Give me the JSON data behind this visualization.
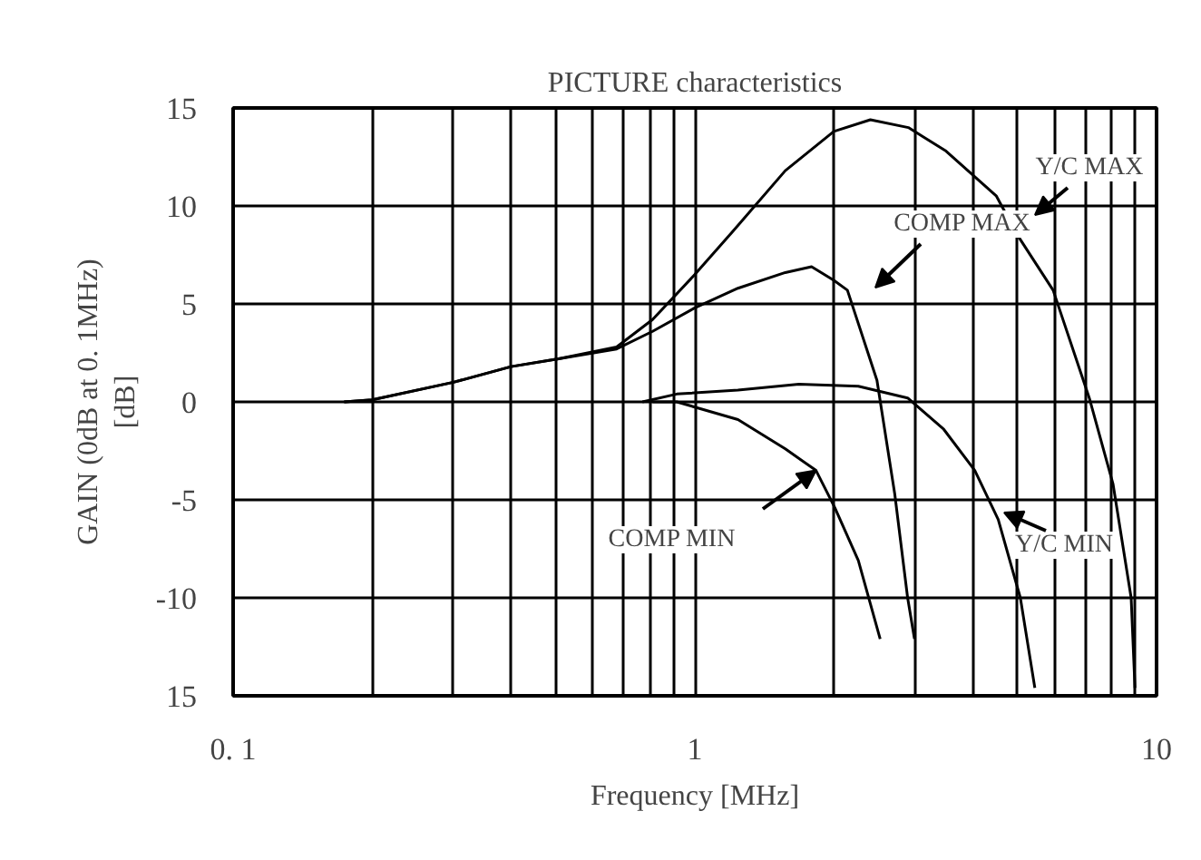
{
  "chart_data": {
    "type": "line",
    "title": "PICTURE characteristics",
    "xlabel": "Frequency [MHz]",
    "ylabel": "GAIN (0dB at 0. 1MHz)\n[dB]",
    "log": "x",
    "grid": true,
    "marker": "none",
    "line_style": "solid",
    "xlim": [
      0.1,
      10
    ],
    "ylim": [
      -15,
      15
    ],
    "xticks": [
      {
        "value": 0.1,
        "label": "0. 1"
      },
      {
        "value": 0.2,
        "label": null
      },
      {
        "value": 0.3,
        "label": null
      },
      {
        "value": 0.4,
        "label": null
      },
      {
        "value": 0.5,
        "label": null
      },
      {
        "value": 0.6,
        "label": null
      },
      {
        "value": 0.7,
        "label": null
      },
      {
        "value": 0.8,
        "label": null
      },
      {
        "value": 0.9,
        "label": null
      },
      1,
      {
        "value": 2,
        "label": null
      },
      {
        "value": 3,
        "label": null
      },
      {
        "value": 4,
        "label": null
      },
      {
        "value": 5,
        "label": null
      },
      {
        "value": 6,
        "label": null
      },
      {
        "value": 7,
        "label": null
      },
      {
        "value": 8,
        "label": null
      },
      {
        "value": 9,
        "label": null
      },
      10
    ],
    "yticks": [
      {
        "value": -15,
        "label": "15"
      },
      -10,
      -5,
      0,
      5,
      10,
      15
    ],
    "series": [
      {
        "color": "#000000",
        "x": [
          0.174,
          0.2,
          0.3,
          0.4,
          0.507,
          0.677,
          0.81,
          1.0,
          1.24,
          1.57,
          2.0,
          2.4,
          2.9,
          3.5,
          4.5,
          5.0,
          5.97,
          7.15,
          8.05,
          8.81,
          8.98
        ],
        "values": [
          0,
          0.1,
          1.0,
          1.8,
          2.2,
          2.8,
          4.2,
          6.5,
          9.0,
          11.8,
          13.8,
          14.4,
          14.0,
          12.8,
          10.5,
          8.5,
          5.7,
          0.2,
          -4.2,
          -10,
          -14.6
        ]
      },
      {
        "color": "#000000",
        "x": [
          0.174,
          0.2,
          0.3,
          0.4,
          0.507,
          0.677,
          0.81,
          1.0,
          1.24,
          1.57,
          1.79,
          2.0,
          2.14,
          2.48,
          2.71,
          2.89,
          2.99
        ],
        "values": [
          0,
          0.1,
          1.0,
          1.8,
          2.2,
          2.7,
          3.6,
          4.8,
          5.8,
          6.6,
          6.9,
          6.2,
          5.7,
          1.1,
          -4.7,
          -10,
          -12.1
        ]
      },
      {
        "color": "#000000",
        "x": [
          0.81,
          0.914,
          1.24,
          1.57,
          1.83,
          2.01,
          2.26,
          2.52
        ],
        "values": [
          0,
          0,
          -0.9,
          -2.4,
          -3.5,
          -5.4,
          -8.1,
          -12.1
        ]
      },
      {
        "color": "#000000",
        "x": [
          0.77,
          0.914,
          1.24,
          1.68,
          2.26,
          2.89,
          3.46,
          4.04,
          4.54,
          5.07,
          5.45
        ],
        "values": [
          0,
          0.4,
          0.6,
          0.9,
          0.8,
          0.2,
          -1.4,
          -3.5,
          -6,
          -10,
          -14.6
        ]
      }
    ],
    "annotations": [
      "COMP MAX",
      "Y/C MAX",
      {
        "text": "COMP MIN",
        "x": 1.83,
        "y": -3.5
      },
      "Y/C MIN"
    ]
  }
}
